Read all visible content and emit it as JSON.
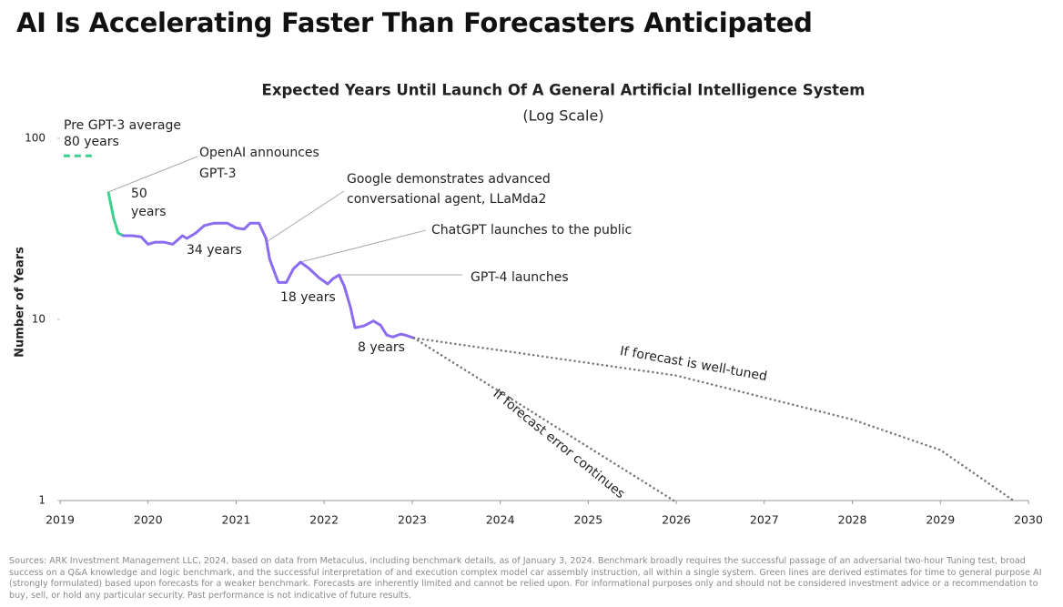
{
  "page_title": "AI Is Accelerating Faster Than Forecasters Anticipated",
  "chart_data": {
    "type": "line",
    "title": "Expected Years Until Launch Of A General Artificial Intelligence System",
    "subtitle": "(Log Scale)",
    "ylabel": "Number of Years",
    "log_scale": true,
    "xlim": [
      2019,
      2030
    ],
    "xticks": [
      2019,
      2020,
      2021,
      2022,
      2023,
      2024,
      2025,
      2026,
      2027,
      2028,
      2029,
      2030
    ],
    "ylim": [
      1,
      100
    ],
    "yticks": [
      1,
      10,
      100
    ],
    "reference": {
      "value": 80,
      "x": [
        2019.04,
        2019.39
      ],
      "color": "#3ecf8e"
    },
    "series": [
      {
        "color": "#3ecf8e",
        "style": "solid",
        "x": [
          2019.55,
          2019.61,
          2019.66,
          2019.72
        ],
        "values": [
          50,
          36,
          30,
          29
        ]
      },
      {
        "color": "#8b6cf0",
        "style": "solid",
        "x": [
          2019.72,
          2019.82,
          2019.92,
          2020.0,
          2020.08,
          2020.18,
          2020.28,
          2020.39,
          2020.44,
          2020.54,
          2020.64,
          2020.75,
          2020.9,
          2021.0,
          2021.09,
          2021.16,
          2021.26,
          2021.34,
          2021.38,
          2021.44,
          2021.48,
          2021.57,
          2021.65,
          2021.73,
          2021.83,
          2021.94,
          2022.04,
          2022.1,
          2022.17,
          2022.23,
          2022.3,
          2022.35,
          2022.45,
          2022.56,
          2022.64,
          2022.71,
          2022.78,
          2022.87,
          2022.92,
          2023.02
        ],
        "values": [
          29,
          29,
          28.6,
          26,
          26.7,
          26.7,
          26,
          29,
          28,
          30,
          33,
          34,
          34,
          32,
          31.5,
          34,
          34,
          28,
          21.6,
          18,
          16,
          16,
          19,
          20.7,
          19.1,
          17,
          15.7,
          16.8,
          17.6,
          15.2,
          11.6,
          9,
          9.2,
          9.8,
          9.3,
          8.2,
          8,
          8.3,
          8.2,
          7.9
        ]
      },
      {
        "name": "If forecast is well-tuned",
        "color": "#777777",
        "style": "dotted",
        "x": [
          2023.02,
          2026,
          2028,
          2029,
          2029.83
        ],
        "values": [
          7.9,
          4.9,
          2.8,
          1.9,
          1
        ]
      },
      {
        "name": "If forecast error continues",
        "color": "#777777",
        "style": "dotted",
        "x": [
          2023.02,
          2025.97
        ],
        "values": [
          7.9,
          1
        ]
      }
    ],
    "annotations": [
      "Pre GPT-3 average",
      "80 years",
      "OpenAI announces",
      "GPT-3",
      "50",
      "years",
      "34 years",
      "Google demonstrates advanced",
      "conversational agent, LLaMda2",
      "ChatGPT launches to the public",
      "GPT-4 launches",
      "18 years",
      "8 years"
    ]
  },
  "footer": "Sources: ARK Investment Management LLC, 2024, based on data from Metaculus, including benchmark details, as of January 3, 2024. Benchmark broadly requires the successful passage of an adversarial two-hour Tuning test, broad success on a Q&A knowledge and logic benchmark, and the successful interpretation of and execution complex model car assembly instruction, all within a single system. Green lines are derived estimates for time to general purpose AI (strongly formulated) based upon forecasts for a weaker benchmark. Forecasts are inherently limited and cannot be relied upon. For informational purposes only and should not be considered investment advice or a recommendation to buy, sell, or hold any particular security. Past performance is not indicative of future results."
}
